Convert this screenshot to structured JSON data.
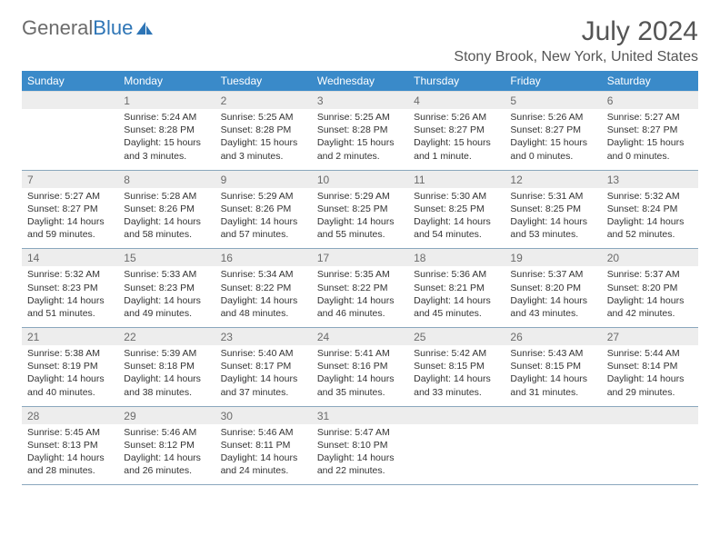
{
  "brand": {
    "part1": "General",
    "part2": "Blue"
  },
  "title": "July 2024",
  "location": "Stony Brook, New York, United States",
  "colors": {
    "header_bg": "#3a8ac9",
    "header_text": "#ffffff",
    "daynum_bg": "#ededed",
    "daynum_text": "#6b6b6b",
    "cell_border": "#8aa7bd",
    "body_text": "#333333",
    "month_title": "#555555",
    "logo_gray": "#6b6b6b",
    "logo_blue": "#2e75b6"
  },
  "day_headers": [
    "Sunday",
    "Monday",
    "Tuesday",
    "Wednesday",
    "Thursday",
    "Friday",
    "Saturday"
  ],
  "weeks": [
    {
      "nums": [
        "",
        "1",
        "2",
        "3",
        "4",
        "5",
        "6"
      ],
      "cells": [
        [],
        [
          "Sunrise: 5:24 AM",
          "Sunset: 8:28 PM",
          "Daylight: 15 hours and 3 minutes."
        ],
        [
          "Sunrise: 5:25 AM",
          "Sunset: 8:28 PM",
          "Daylight: 15 hours and 3 minutes."
        ],
        [
          "Sunrise: 5:25 AM",
          "Sunset: 8:28 PM",
          "Daylight: 15 hours and 2 minutes."
        ],
        [
          "Sunrise: 5:26 AM",
          "Sunset: 8:27 PM",
          "Daylight: 15 hours and 1 minute."
        ],
        [
          "Sunrise: 5:26 AM",
          "Sunset: 8:27 PM",
          "Daylight: 15 hours and 0 minutes."
        ],
        [
          "Sunrise: 5:27 AM",
          "Sunset: 8:27 PM",
          "Daylight: 15 hours and 0 minutes."
        ]
      ]
    },
    {
      "nums": [
        "7",
        "8",
        "9",
        "10",
        "11",
        "12",
        "13"
      ],
      "cells": [
        [
          "Sunrise: 5:27 AM",
          "Sunset: 8:27 PM",
          "Daylight: 14 hours and 59 minutes."
        ],
        [
          "Sunrise: 5:28 AM",
          "Sunset: 8:26 PM",
          "Daylight: 14 hours and 58 minutes."
        ],
        [
          "Sunrise: 5:29 AM",
          "Sunset: 8:26 PM",
          "Daylight: 14 hours and 57 minutes."
        ],
        [
          "Sunrise: 5:29 AM",
          "Sunset: 8:25 PM",
          "Daylight: 14 hours and 55 minutes."
        ],
        [
          "Sunrise: 5:30 AM",
          "Sunset: 8:25 PM",
          "Daylight: 14 hours and 54 minutes."
        ],
        [
          "Sunrise: 5:31 AM",
          "Sunset: 8:25 PM",
          "Daylight: 14 hours and 53 minutes."
        ],
        [
          "Sunrise: 5:32 AM",
          "Sunset: 8:24 PM",
          "Daylight: 14 hours and 52 minutes."
        ]
      ]
    },
    {
      "nums": [
        "14",
        "15",
        "16",
        "17",
        "18",
        "19",
        "20"
      ],
      "cells": [
        [
          "Sunrise: 5:32 AM",
          "Sunset: 8:23 PM",
          "Daylight: 14 hours and 51 minutes."
        ],
        [
          "Sunrise: 5:33 AM",
          "Sunset: 8:23 PM",
          "Daylight: 14 hours and 49 minutes."
        ],
        [
          "Sunrise: 5:34 AM",
          "Sunset: 8:22 PM",
          "Daylight: 14 hours and 48 minutes."
        ],
        [
          "Sunrise: 5:35 AM",
          "Sunset: 8:22 PM",
          "Daylight: 14 hours and 46 minutes."
        ],
        [
          "Sunrise: 5:36 AM",
          "Sunset: 8:21 PM",
          "Daylight: 14 hours and 45 minutes."
        ],
        [
          "Sunrise: 5:37 AM",
          "Sunset: 8:20 PM",
          "Daylight: 14 hours and 43 minutes."
        ],
        [
          "Sunrise: 5:37 AM",
          "Sunset: 8:20 PM",
          "Daylight: 14 hours and 42 minutes."
        ]
      ]
    },
    {
      "nums": [
        "21",
        "22",
        "23",
        "24",
        "25",
        "26",
        "27"
      ],
      "cells": [
        [
          "Sunrise: 5:38 AM",
          "Sunset: 8:19 PM",
          "Daylight: 14 hours and 40 minutes."
        ],
        [
          "Sunrise: 5:39 AM",
          "Sunset: 8:18 PM",
          "Daylight: 14 hours and 38 minutes."
        ],
        [
          "Sunrise: 5:40 AM",
          "Sunset: 8:17 PM",
          "Daylight: 14 hours and 37 minutes."
        ],
        [
          "Sunrise: 5:41 AM",
          "Sunset: 8:16 PM",
          "Daylight: 14 hours and 35 minutes."
        ],
        [
          "Sunrise: 5:42 AM",
          "Sunset: 8:15 PM",
          "Daylight: 14 hours and 33 minutes."
        ],
        [
          "Sunrise: 5:43 AM",
          "Sunset: 8:15 PM",
          "Daylight: 14 hours and 31 minutes."
        ],
        [
          "Sunrise: 5:44 AM",
          "Sunset: 8:14 PM",
          "Daylight: 14 hours and 29 minutes."
        ]
      ]
    },
    {
      "nums": [
        "28",
        "29",
        "30",
        "31",
        "",
        "",
        ""
      ],
      "cells": [
        [
          "Sunrise: 5:45 AM",
          "Sunset: 8:13 PM",
          "Daylight: 14 hours and 28 minutes."
        ],
        [
          "Sunrise: 5:46 AM",
          "Sunset: 8:12 PM",
          "Daylight: 14 hours and 26 minutes."
        ],
        [
          "Sunrise: 5:46 AM",
          "Sunset: 8:11 PM",
          "Daylight: 14 hours and 24 minutes."
        ],
        [
          "Sunrise: 5:47 AM",
          "Sunset: 8:10 PM",
          "Daylight: 14 hours and 22 minutes."
        ],
        [],
        [],
        []
      ]
    }
  ]
}
